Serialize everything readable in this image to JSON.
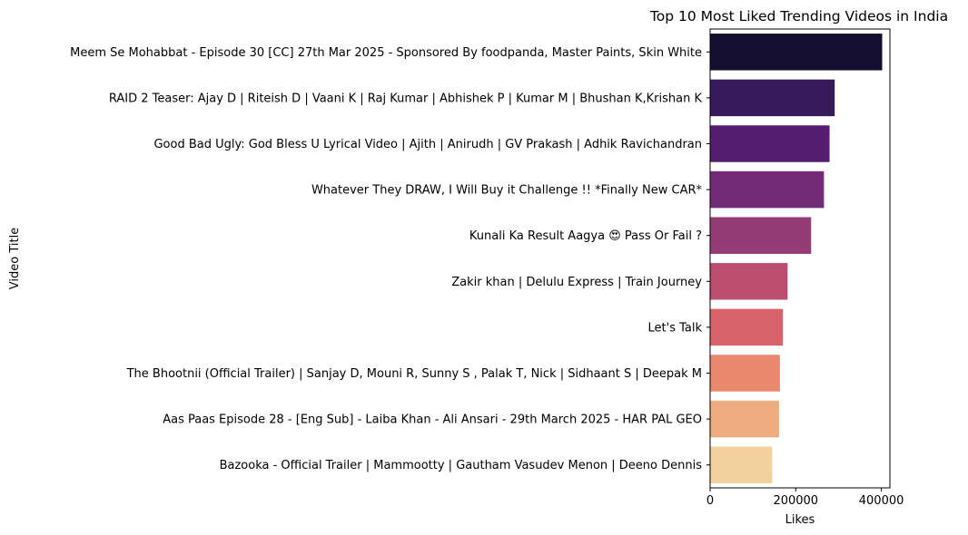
{
  "chart_data": {
    "type": "bar",
    "orientation": "horizontal",
    "title": "Top 10 Most Liked Trending Videos in India",
    "xlabel": "Likes",
    "ylabel": "Video Title",
    "xlim": [
      0,
      420000
    ],
    "xticks": [
      0,
      200000,
      400000
    ],
    "grid": false,
    "categories": [
      "Meem Se Mohabbat - Episode 30 [CC] 27th Mar 2025 - Sponsored By foodpanda, Master Paints, Skin White",
      "RAID 2 Teaser: Ajay D | Riteish D | Vaani K | Raj Kumar | Abhishek P | Kumar M | Bhushan K,Krishan K",
      "Good Bad Ugly: God Bless U Lyrical Video | Ajith | Anirudh | GV Prakash | Adhik Ravichandran",
      "Whatever They DRAW, I Will Buy it Challenge !! *Finally New CAR*",
      "Kunali Ka Result Aagya 😍 Pass Or Fail ?",
      "Zakir khan | Delulu Express | Train Journey",
      "Let's Talk",
      "The Bhootnii (Official Trailer) | Sanjay D, Mouni R, Sunny S , Palak T, Nick | Sidhaant S | Deepak M",
      "Aas Paas Episode 28 - [Eng Sub] - Laiba Khan - Ali Ansari - 29th March 2025 - HAR PAL GEO",
      "Bazooka - Official Trailer | Mammootty | Gautham Vasudev Menon | Deeno Dennis"
    ],
    "values": [
      402000,
      291000,
      279000,
      266000,
      236000,
      181000,
      170000,
      163000,
      161000,
      145000
    ],
    "colors": [
      "#140f2e",
      "#361a5c",
      "#541d70",
      "#722c77",
      "#933c76",
      "#bc4e72",
      "#d9636b",
      "#e8886c",
      "#edac7f",
      "#f2d19e"
    ]
  }
}
